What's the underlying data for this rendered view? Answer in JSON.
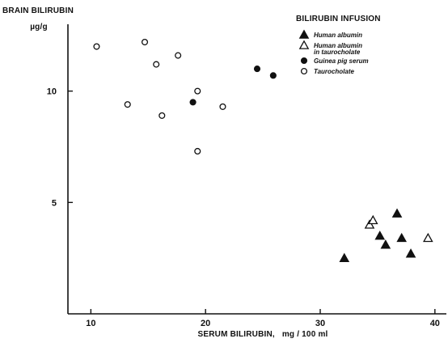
{
  "chart_data": {
    "type": "scatter",
    "title": "",
    "ylabel_lines": [
      "BRAIN BILIRUBIN",
      "µg/g"
    ],
    "xlabel": "SERUM BILIRUBIN,   mg / 100 ml",
    "xlim": [
      8,
      41
    ],
    "ylim": [
      0,
      13
    ],
    "x_ticks": [
      10,
      20,
      30,
      40
    ],
    "y_ticks": [
      5,
      10
    ],
    "grid": false,
    "legend_title": "BILIRUBIN INFUSION",
    "legend_position": "top-right",
    "series": [
      {
        "name": "Human albumin",
        "marker": "filled-triangle",
        "points": [
          [
            32.1,
            2.5
          ],
          [
            35.2,
            3.5
          ],
          [
            35.7,
            3.1
          ],
          [
            36.7,
            4.5
          ],
          [
            37.1,
            3.4
          ],
          [
            37.9,
            2.7
          ]
        ]
      },
      {
        "name_lines": [
          "Human albumin",
          "in taurocholate"
        ],
        "marker": "open-triangle",
        "points": [
          [
            34.3,
            4.0
          ],
          [
            34.6,
            4.2
          ],
          [
            39.4,
            3.4
          ]
        ]
      },
      {
        "name": "Guinea pig serum",
        "marker": "filled-circle",
        "points": [
          [
            18.9,
            9.5
          ],
          [
            24.5,
            11.0
          ],
          [
            25.9,
            10.7
          ]
        ]
      },
      {
        "name": "Taurocholate",
        "marker": "open-circle",
        "points": [
          [
            10.5,
            12.0
          ],
          [
            13.2,
            9.4
          ],
          [
            14.7,
            12.2
          ],
          [
            15.7,
            11.2
          ],
          [
            16.2,
            8.9
          ],
          [
            17.6,
            11.6
          ],
          [
            19.3,
            10.0
          ],
          [
            19.3,
            7.3
          ],
          [
            21.5,
            9.3
          ]
        ]
      }
    ]
  }
}
